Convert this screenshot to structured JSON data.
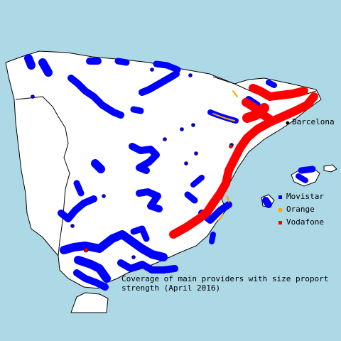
{
  "colors": {
    "sea": "#add8e6",
    "land": "#ffffff",
    "border": "#000000",
    "movistar": "#0000ff",
    "orange": "#ffa500",
    "vodafone": "#ff0000"
  },
  "map": {
    "city_label": "Barcelona",
    "caption_line1": "Coverage of main providers with size proport",
    "caption_line2": "strength (April 2016)"
  },
  "legend": {
    "items": [
      {
        "label": "Movistar",
        "color": "#0000ff"
      },
      {
        "label": "Orange",
        "color": "#ffa500"
      },
      {
        "label": "Vodafone",
        "color": "#ff0000"
      }
    ]
  }
}
